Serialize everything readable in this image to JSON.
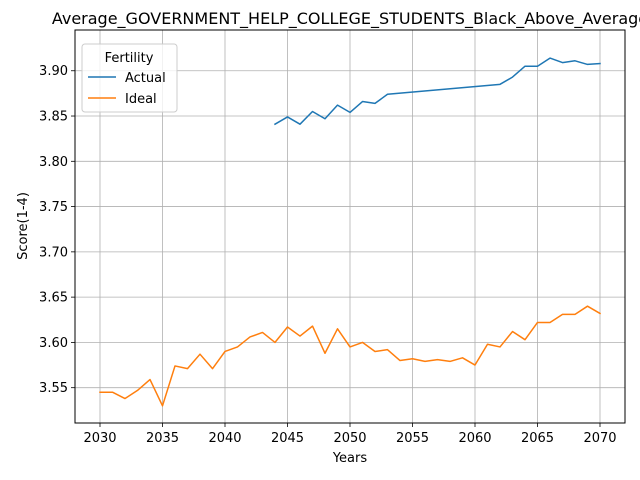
{
  "chart_data": {
    "type": "line",
    "title": "Average_GOVERNMENT_HELP_COLLEGE_STUDENTS_Black_Above_Average",
    "xlabel": "Years",
    "ylabel": "Score(1-4)",
    "xlim": [
      2028,
      2072
    ],
    "ylim": [
      3.511,
      3.945
    ],
    "xticks": [
      2030,
      2035,
      2040,
      2045,
      2050,
      2055,
      2060,
      2065,
      2070
    ],
    "yticks": [
      3.55,
      3.6,
      3.65,
      3.7,
      3.75,
      3.8,
      3.85,
      3.9
    ],
    "grid": true,
    "legend": {
      "title": "Fertility",
      "position": "upper-left"
    },
    "series": [
      {
        "name": "Actual",
        "color": "#1f77b4",
        "x": [
          2044,
          2045,
          2046,
          2047,
          2048,
          2049,
          2050,
          2051,
          2052,
          2053,
          2062,
          2063,
          2064,
          2065,
          2066,
          2067,
          2068,
          2069,
          2070
        ],
        "y": [
          3.841,
          3.849,
          3.841,
          3.855,
          3.847,
          3.862,
          3.854,
          3.866,
          3.864,
          3.874,
          3.885,
          3.893,
          3.905,
          3.905,
          3.914,
          3.909,
          3.911,
          3.907,
          3.908
        ]
      },
      {
        "name": "Ideal",
        "color": "#ff7f0e",
        "x": [
          2030,
          2031,
          2032,
          2033,
          2034,
          2035,
          2036,
          2037,
          2038,
          2039,
          2040,
          2041,
          2042,
          2043,
          2044,
          2045,
          2046,
          2047,
          2048,
          2049,
          2050,
          2051,
          2052,
          2053,
          2054,
          2055,
          2056,
          2057,
          2058,
          2059,
          2060,
          2061,
          2062,
          2063,
          2064,
          2065,
          2066,
          2067,
          2068,
          2069,
          2070
        ],
        "y": [
          3.545,
          3.545,
          3.538,
          3.547,
          3.559,
          3.53,
          3.574,
          3.571,
          3.587,
          3.571,
          3.59,
          3.595,
          3.606,
          3.611,
          3.6,
          3.617,
          3.607,
          3.618,
          3.588,
          3.615,
          3.595,
          3.6,
          3.59,
          3.592,
          3.58,
          3.582,
          3.579,
          3.581,
          3.579,
          3.583,
          3.575,
          3.598,
          3.595,
          3.612,
          3.603,
          3.622,
          3.622,
          3.631,
          3.631,
          3.64,
          3.632
        ]
      }
    ]
  }
}
